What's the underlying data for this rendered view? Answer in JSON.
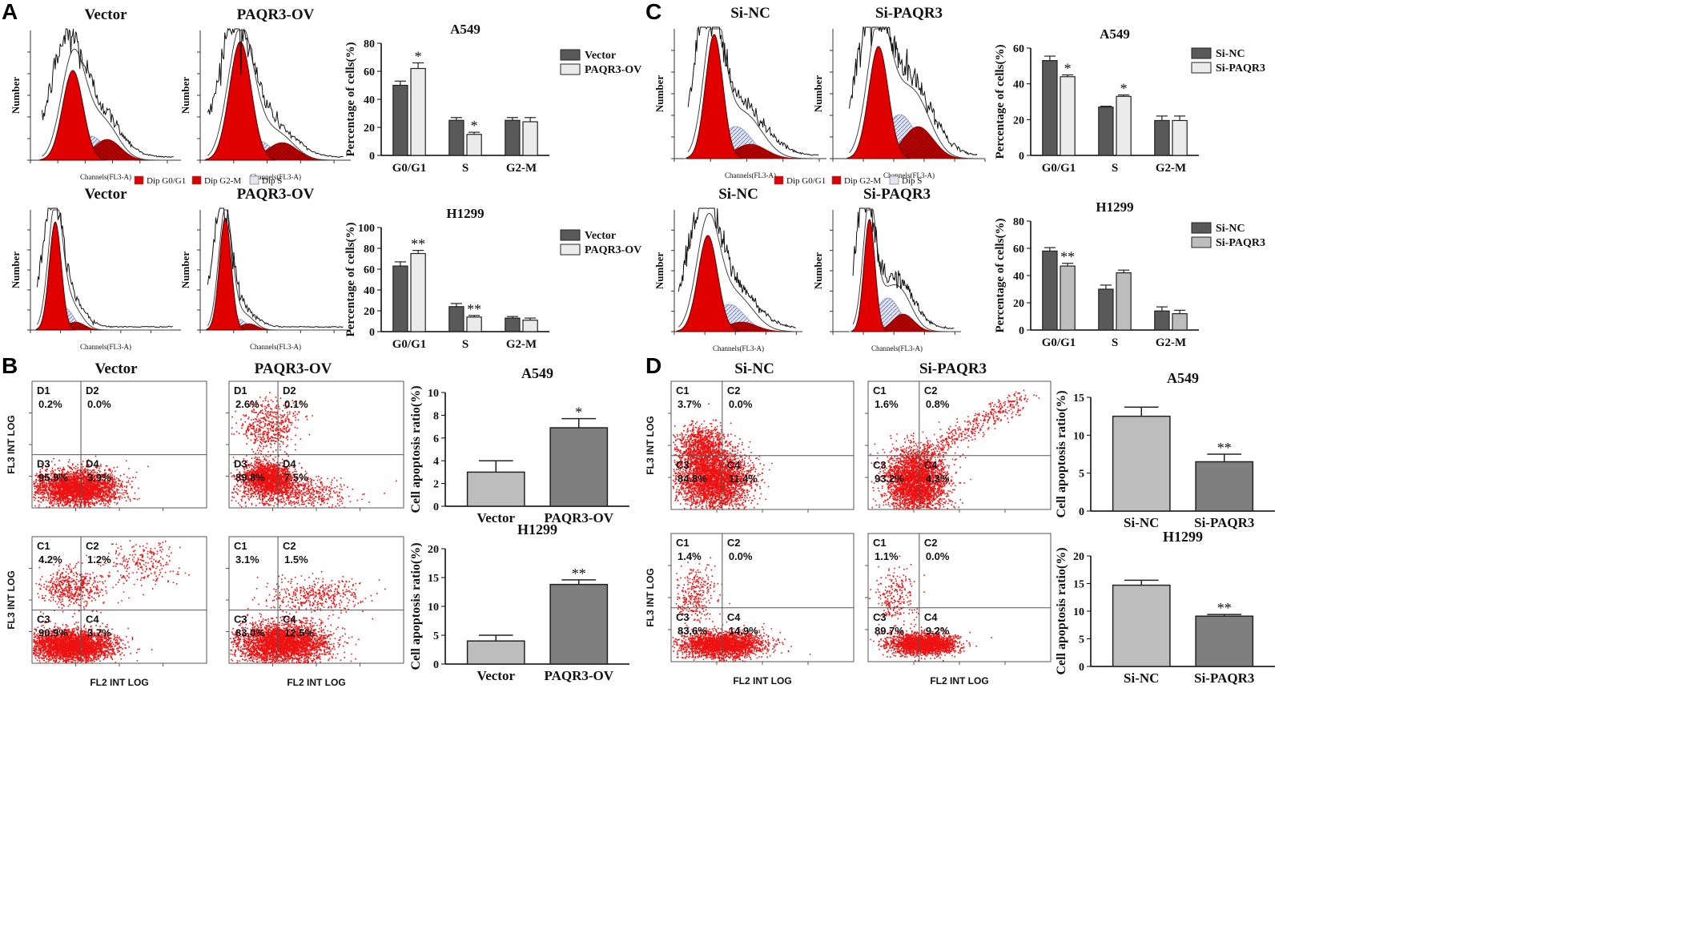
{
  "panels": {
    "A": {
      "label": "A",
      "flow_titles": {
        "top": [
          "Vector",
          "PAQR3-OV"
        ],
        "bottom": [
          "Vector",
          "PAQR3-OV"
        ]
      },
      "legend": [
        "Dip G0/G1",
        "Dip G2-M",
        "Dip S"
      ],
      "flow_ylabel": "Number",
      "flow_xlabel": "Channels(FL3-A)"
    },
    "B": {
      "label": "B",
      "titles": [
        "Vector",
        "PAQR3-OV"
      ],
      "xlabel": "FL2 INT LOG",
      "ylabel": "FL3 INT LOG",
      "quadrants": {
        "Vector_A549": [
          [
            "D1",
            "0.2%"
          ],
          [
            "D2",
            "0.0%"
          ],
          [
            "D3",
            "95.9%"
          ],
          [
            "D4",
            "3.9%"
          ]
        ],
        "PAQR3_A549": [
          [
            "D1",
            "2.6%"
          ],
          [
            "D2",
            "0.1%"
          ],
          [
            "D3",
            "89.8%"
          ],
          [
            "D4",
            "7.5%"
          ]
        ],
        "Vector_H1299": [
          [
            "C1",
            "4.2%"
          ],
          [
            "C2",
            "1.2%"
          ],
          [
            "C3",
            "90.9%"
          ],
          [
            "C4",
            "3.7%"
          ]
        ],
        "PAQR3_H1299": [
          [
            "C1",
            "3.1%"
          ],
          [
            "C2",
            "1.5%"
          ],
          [
            "C3",
            "83.0%"
          ],
          [
            "C4",
            "12.5%"
          ]
        ]
      }
    },
    "C": {
      "label": "C",
      "flow_titles": {
        "top": [
          "Si-NC",
          "Si-PAQR3"
        ],
        "bottom": [
          "Si-NC",
          "Si-PAQR3"
        ]
      },
      "legend": [
        "Dip G0/G1",
        "Dip G2-M",
        "Dip S"
      ],
      "flow_ylabel": "Number",
      "flow_xlabel": "Channels(FL3-A)"
    },
    "D": {
      "label": "D",
      "titles": [
        "Si-NC",
        "Si-PAQR3"
      ],
      "xlabel": "FL2 INT LOG",
      "ylabel": "FL3 INT LOG",
      "quadrants": {
        "NC_A549": [
          [
            "C1",
            "3.7%"
          ],
          [
            "C2",
            "0.0%"
          ],
          [
            "C3",
            "84.8%"
          ],
          [
            "C4",
            "11.4%"
          ]
        ],
        "PAQR3_A549": [
          [
            "C1",
            "1.6%"
          ],
          [
            "C2",
            "0.8%"
          ],
          [
            "C3",
            "93.2%"
          ],
          [
            "C4",
            "4.3%"
          ]
        ],
        "NC_H1299": [
          [
            "C1",
            "1.4%"
          ],
          [
            "C2",
            "0.0%"
          ],
          [
            "C3",
            "83.6%"
          ],
          [
            "C4",
            "14.9%"
          ]
        ],
        "PAQR3_H1299": [
          [
            "C1",
            "1.1%"
          ],
          [
            "C2",
            "0.0%"
          ],
          [
            "C3",
            "89.7%"
          ],
          [
            "C4",
            "9.2%"
          ]
        ]
      }
    }
  },
  "colors": {
    "dark_bar": "#595959",
    "light_bar": "#ebebeb",
    "gray_bar": "#bdbdbd",
    "mid_bar": "#7f7f7f",
    "flow_red": "#e00000",
    "scatter_red": "#ee1111"
  },
  "chart_data": [
    {
      "id": "A_A549",
      "type": "bar",
      "title": "A549",
      "ylabel": "Percentage of cells(%)",
      "ylim": [
        0,
        80
      ],
      "yticks": [
        "0",
        "20",
        "40",
        "60",
        "80"
      ],
      "categories": [
        "G0/G1",
        "S",
        "G2-M"
      ],
      "series": [
        {
          "name": "Vector",
          "values": [
            50,
            25,
            25
          ],
          "errors": [
            3,
            2,
            2
          ]
        },
        {
          "name": "PAQR3-OV",
          "values": [
            62,
            15,
            24
          ],
          "errors": [
            4,
            1.5,
            3
          ]
        }
      ],
      "annotations": [
        {
          "category": 0,
          "series": 1,
          "text": "*"
        },
        {
          "category": 1,
          "series": 1,
          "text": "*"
        }
      ]
    },
    {
      "id": "A_H1299",
      "type": "bar",
      "title": "H1299",
      "ylabel": "Percentage of cells(%)",
      "ylim": [
        0,
        100
      ],
      "yticks": [
        "0",
        "20",
        "40",
        "60",
        "80",
        "100"
      ],
      "categories": [
        "G0/G1",
        "S",
        "G2-M"
      ],
      "series": [
        {
          "name": "Vector",
          "values": [
            63,
            24,
            13
          ],
          "errors": [
            4,
            3,
            1.5
          ]
        },
        {
          "name": "PAQR3-OV",
          "values": [
            75,
            14,
            11
          ],
          "errors": [
            3,
            1.5,
            2
          ]
        }
      ],
      "annotations": [
        {
          "category": 0,
          "series": 1,
          "text": "**"
        },
        {
          "category": 1,
          "series": 1,
          "text": "**"
        }
      ]
    },
    {
      "id": "C_A549",
      "type": "bar",
      "title": "A549",
      "ylabel": "Percentage of cells(%)",
      "ylim": [
        0,
        60
      ],
      "yticks": [
        "0",
        "20",
        "40",
        "60"
      ],
      "categories": [
        "G0/G1",
        "S",
        "G2-M"
      ],
      "series": [
        {
          "name": "Si-NC",
          "values": [
            53,
            27,
            19.5
          ],
          "errors": [
            2.5,
            0.5,
            2.5
          ]
        },
        {
          "name": "Si-PAQR3",
          "values": [
            44,
            33,
            19.5
          ],
          "errors": [
            1,
            0.8,
            2.5
          ]
        }
      ],
      "annotations": [
        {
          "category": 0,
          "series": 1,
          "text": "*"
        },
        {
          "category": 1,
          "series": 1,
          "text": "*"
        }
      ]
    },
    {
      "id": "C_H1299",
      "type": "bar",
      "title": "H1299",
      "ylabel": "Percentage of cells(%)",
      "ylim": [
        0,
        80
      ],
      "yticks": [
        "0",
        "20",
        "40",
        "60",
        "80"
      ],
      "categories": [
        "G0/G1",
        "S",
        "G2-M"
      ],
      "series": [
        {
          "name": "Si-NC",
          "values": [
            58,
            30,
            14
          ],
          "errors": [
            2.5,
            3,
            3
          ]
        },
        {
          "name": "Si-PAQR3",
          "values": [
            47,
            42,
            12
          ],
          "errors": [
            2,
            2,
            2.5
          ]
        }
      ],
      "annotations": [
        {
          "category": 0,
          "series": 1,
          "text": "**"
        }
      ]
    },
    {
      "id": "B_A549",
      "type": "bar",
      "title": "A549",
      "ylabel": "Cell apoptosis ratio(%)",
      "ylim": [
        0,
        10
      ],
      "yticks": [
        "0",
        "2",
        "4",
        "6",
        "8",
        "10"
      ],
      "categories": [
        "Vector",
        "PAQR3-OV"
      ],
      "values": [
        3.0,
        6.9
      ],
      "errors": [
        1.0,
        0.8
      ],
      "annotations": [
        {
          "category": 1,
          "text": "*"
        }
      ]
    },
    {
      "id": "B_H1299",
      "type": "bar",
      "title": "H1299",
      "ylabel": "Cell apoptosis ratio(%)",
      "ylim": [
        0,
        20
      ],
      "yticks": [
        "0",
        "5",
        "10",
        "15",
        "20"
      ],
      "categories": [
        "Vector",
        "PAQR3-OV"
      ],
      "values": [
        4.0,
        13.8
      ],
      "errors": [
        1.0,
        0.8
      ],
      "annotations": [
        {
          "category": 1,
          "text": "**"
        }
      ]
    },
    {
      "id": "D_A549",
      "type": "bar",
      "title": "A549",
      "ylabel": "Cell apoptosis ratio(%)",
      "ylim": [
        0,
        15
      ],
      "yticks": [
        "0",
        "5",
        "10",
        "15"
      ],
      "categories": [
        "Si-NC",
        "Si-PAQR3"
      ],
      "values": [
        12.5,
        6.5
      ],
      "errors": [
        1.2,
        1.0
      ],
      "annotations": [
        {
          "category": 1,
          "text": "**"
        }
      ]
    },
    {
      "id": "D_H1299",
      "type": "bar",
      "title": "H1299",
      "ylabel": "Cell apoptosis ratio(%)",
      "ylim": [
        0,
        20
      ],
      "yticks": [
        "0",
        "5",
        "10",
        "15",
        "20"
      ],
      "categories": [
        "Si-NC",
        "Si-PAQR3"
      ],
      "values": [
        14.7,
        9.1
      ],
      "errors": [
        0.9,
        0.3
      ],
      "annotations": [
        {
          "category": 1,
          "text": "**"
        }
      ]
    }
  ]
}
